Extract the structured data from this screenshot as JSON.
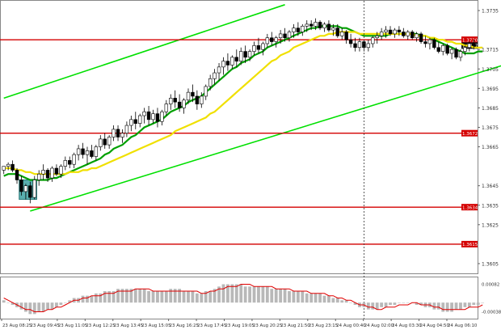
{
  "chart_data": {
    "type": "candlestick",
    "title": "",
    "xlabel": "",
    "ylabel": "",
    "price_axis": {
      "ylim": [
        1.36,
        1.374
      ],
      "ticks": [
        "1.3735",
        "1.3715",
        "1.3705",
        "1.3695",
        "1.3685",
        "1.3675",
        "1.3665",
        "1.3645",
        "1.3635",
        "1.3625",
        "1.3605"
      ]
    },
    "time_axis": {
      "ticks": [
        "23 Aug 08:25",
        "23 Aug 09:45",
        "23 Aug 11:05",
        "23 Aug 12:25",
        "23 Aug 13:45",
        "23 Aug 15:05",
        "23 Aug 16:25",
        "23 Aug 17:45",
        "23 Aug 19:05",
        "23 Aug 20:25",
        "23 Aug 21:50",
        "23 Aug 23:15",
        "24 Aug 00:40",
        "24 Aug 02:00",
        "24 Aug 03:30",
        "24 Aug 04:50",
        "24 Aug 06:10"
      ]
    },
    "horizontal_levels": [
      {
        "label": "1.3720",
        "value": 1.372,
        "color": "#d40000"
      },
      {
        "label": "1.3672",
        "value": 1.3672,
        "color": "#d40000"
      },
      {
        "label": "1.3634",
        "value": 1.3634,
        "color": "#d40000"
      },
      {
        "label": "1.3615",
        "value": 1.3615,
        "color": "#d40000"
      }
    ],
    "current_price": {
      "label": "1.3717",
      "value": 1.3717
    },
    "channel_lines": [
      {
        "from": [
          0,
          1.369
        ],
        "to": [
          64,
          1.3738
        ],
        "color": "#00e000"
      },
      {
        "from": [
          6,
          1.3632
        ],
        "to": [
          121,
          1.3712
        ],
        "color": "#00e000"
      }
    ],
    "vertical_marker": {
      "index": 82
    },
    "highlight_box": {
      "from": 4,
      "to": 7,
      "low": 1.3638,
      "high": 1.3648,
      "color": "#3ca0a0"
    },
    "candles": [
      [
        1.3653,
        1.3655,
        1.3651,
        1.3655
      ],
      [
        1.3655,
        1.3657,
        1.3653,
        1.3656
      ],
      [
        1.3656,
        1.3658,
        1.3652,
        1.3653
      ],
      [
        1.3653,
        1.3654,
        1.3646,
        1.3648
      ],
      [
        1.3648,
        1.365,
        1.364,
        1.3642
      ],
      [
        1.3642,
        1.3646,
        1.3638,
        1.3645
      ],
      [
        1.3645,
        1.3647,
        1.3636,
        1.3639
      ],
      [
        1.3639,
        1.365,
        1.3638,
        1.3648
      ],
      [
        1.3648,
        1.3653,
        1.3645,
        1.3651
      ],
      [
        1.3651,
        1.3656,
        1.3648,
        1.3653
      ],
      [
        1.3653,
        1.3654,
        1.3647,
        1.3649
      ],
      [
        1.3649,
        1.3655,
        1.3647,
        1.3654
      ],
      [
        1.3654,
        1.3656,
        1.365,
        1.3651
      ],
      [
        1.3651,
        1.3656,
        1.3649,
        1.3655
      ],
      [
        1.3655,
        1.366,
        1.3653,
        1.3658
      ],
      [
        1.3658,
        1.366,
        1.3654,
        1.3656
      ],
      [
        1.3656,
        1.3662,
        1.3654,
        1.3661
      ],
      [
        1.3661,
        1.3666,
        1.3658,
        1.3664
      ],
      [
        1.3664,
        1.3667,
        1.3659,
        1.3661
      ],
      [
        1.3661,
        1.3665,
        1.3656,
        1.3663
      ],
      [
        1.3663,
        1.3666,
        1.3659,
        1.366
      ],
      [
        1.366,
        1.3666,
        1.3658,
        1.3665
      ],
      [
        1.3665,
        1.3671,
        1.3663,
        1.3669
      ],
      [
        1.3669,
        1.3672,
        1.3664,
        1.3666
      ],
      [
        1.3666,
        1.3671,
        1.3664,
        1.367
      ],
      [
        1.367,
        1.3676,
        1.3668,
        1.3674
      ],
      [
        1.3674,
        1.3676,
        1.3668,
        1.367
      ],
      [
        1.367,
        1.3674,
        1.3667,
        1.3672
      ],
      [
        1.3672,
        1.3678,
        1.367,
        1.3676
      ],
      [
        1.3676,
        1.3681,
        1.3673,
        1.3679
      ],
      [
        1.3679,
        1.3683,
        1.3674,
        1.3677
      ],
      [
        1.3677,
        1.3682,
        1.3675,
        1.3681
      ],
      [
        1.3681,
        1.3685,
        1.3677,
        1.3683
      ],
      [
        1.3683,
        1.3686,
        1.3676,
        1.3679
      ],
      [
        1.3679,
        1.3684,
        1.3677,
        1.3682
      ],
      [
        1.3682,
        1.3685,
        1.3675,
        1.3678
      ],
      [
        1.3678,
        1.3684,
        1.3676,
        1.3683
      ],
      [
        1.3683,
        1.3689,
        1.3681,
        1.3687
      ],
      [
        1.3687,
        1.3692,
        1.3684,
        1.369
      ],
      [
        1.369,
        1.3694,
        1.3685,
        1.3688
      ],
      [
        1.3688,
        1.3692,
        1.3683,
        1.3685
      ],
      [
        1.3685,
        1.369,
        1.3682,
        1.3689
      ],
      [
        1.3689,
        1.3695,
        1.3687,
        1.3693
      ],
      [
        1.3693,
        1.3697,
        1.3688,
        1.3691
      ],
      [
        1.3691,
        1.3694,
        1.3684,
        1.3687
      ],
      [
        1.3687,
        1.3693,
        1.3685,
        1.3691
      ],
      [
        1.3691,
        1.3697,
        1.3689,
        1.3696
      ],
      [
        1.3696,
        1.3702,
        1.3694,
        1.37
      ],
      [
        1.37,
        1.3705,
        1.3697,
        1.3703
      ],
      [
        1.3703,
        1.3708,
        1.3699,
        1.3706
      ],
      [
        1.3706,
        1.3711,
        1.3702,
        1.3709
      ],
      [
        1.3709,
        1.3713,
        1.3704,
        1.3707
      ],
      [
        1.3707,
        1.3712,
        1.3705,
        1.3711
      ],
      [
        1.3711,
        1.3715,
        1.3706,
        1.3709
      ],
      [
        1.3709,
        1.3716,
        1.3707,
        1.3714
      ],
      [
        1.3714,
        1.3717,
        1.3708,
        1.3711
      ],
      [
        1.3711,
        1.3715,
        1.3709,
        1.3714
      ],
      [
        1.3714,
        1.3719,
        1.3712,
        1.3717
      ],
      [
        1.3717,
        1.3721,
        1.3713,
        1.3715
      ],
      [
        1.3715,
        1.3719,
        1.3712,
        1.3718
      ],
      [
        1.3718,
        1.3723,
        1.3716,
        1.3721
      ],
      [
        1.3721,
        1.3724,
        1.3717,
        1.3719
      ],
      [
        1.3719,
        1.3722,
        1.3716,
        1.3721
      ],
      [
        1.3721,
        1.3725,
        1.3718,
        1.3723
      ],
      [
        1.3723,
        1.3726,
        1.3719,
        1.3721
      ],
      [
        1.3721,
        1.3725,
        1.3719,
        1.3724
      ],
      [
        1.3724,
        1.3728,
        1.3721,
        1.3726
      ],
      [
        1.3726,
        1.3729,
        1.3722,
        1.3724
      ],
      [
        1.3724,
        1.3728,
        1.3722,
        1.3727
      ],
      [
        1.3727,
        1.373,
        1.3724,
        1.3728
      ],
      [
        1.3728,
        1.373,
        1.3725,
        1.3727
      ],
      [
        1.3727,
        1.3731,
        1.3725,
        1.3729
      ],
      [
        1.3729,
        1.373,
        1.3725,
        1.3726
      ],
      [
        1.3726,
        1.3729,
        1.3724,
        1.3728
      ],
      [
        1.3728,
        1.373,
        1.3724,
        1.3725
      ],
      [
        1.3725,
        1.3728,
        1.3722,
        1.3726
      ],
      [
        1.3726,
        1.3728,
        1.3721,
        1.3722
      ],
      [
        1.3722,
        1.3726,
        1.372,
        1.3724
      ],
      [
        1.3724,
        1.3725,
        1.3718,
        1.372
      ],
      [
        1.372,
        1.3723,
        1.3716,
        1.3718
      ],
      [
        1.3718,
        1.3721,
        1.3714,
        1.3716
      ],
      [
        1.3716,
        1.3721,
        1.3714,
        1.3719
      ],
      [
        1.3719,
        1.372,
        1.3714,
        1.3716
      ],
      [
        1.3716,
        1.372,
        1.3714,
        1.3718
      ],
      [
        1.3718,
        1.3722,
        1.3716,
        1.3721
      ],
      [
        1.3721,
        1.3724,
        1.3718,
        1.3722
      ],
      [
        1.3722,
        1.3726,
        1.372,
        1.3724
      ],
      [
        1.3724,
        1.3727,
        1.3721,
        1.3725
      ],
      [
        1.3725,
        1.3727,
        1.3722,
        1.3723
      ],
      [
        1.3723,
        1.3726,
        1.3721,
        1.3725
      ],
      [
        1.3725,
        1.3727,
        1.3722,
        1.3724
      ],
      [
        1.3724,
        1.3726,
        1.3721,
        1.3722
      ],
      [
        1.3722,
        1.3725,
        1.372,
        1.3724
      ],
      [
        1.3724,
        1.3725,
        1.372,
        1.3721
      ],
      [
        1.3721,
        1.3724,
        1.3719,
        1.3723
      ],
      [
        1.3723,
        1.3724,
        1.3718,
        1.3719
      ],
      [
        1.3719,
        1.3722,
        1.3716,
        1.3718
      ],
      [
        1.3718,
        1.3721,
        1.3715,
        1.372
      ],
      [
        1.372,
        1.3721,
        1.3715,
        1.3716
      ],
      [
        1.3716,
        1.3719,
        1.3713,
        1.3714
      ],
      [
        1.3714,
        1.3718,
        1.3712,
        1.3717
      ],
      [
        1.3717,
        1.3718,
        1.3712,
        1.3713
      ],
      [
        1.3713,
        1.3716,
        1.371,
        1.3715
      ],
      [
        1.3715,
        1.3716,
        1.371,
        1.3711
      ],
      [
        1.3711,
        1.3715,
        1.3709,
        1.3714
      ],
      [
        1.3714,
        1.3717,
        1.3712,
        1.3716
      ],
      [
        1.3716,
        1.3719,
        1.3714,
        1.3718
      ],
      [
        1.3718,
        1.372,
        1.3715,
        1.3717
      ]
    ],
    "moving_averages": [
      {
        "color": "#00a000",
        "values": [
          1.365,
          1.3651,
          1.3651,
          1.3651,
          1.365,
          1.3649,
          1.3648,
          1.3648,
          1.3648,
          1.3648,
          1.3648,
          1.3649,
          1.3649,
          1.365,
          1.3651,
          1.3652,
          1.3653,
          1.3654,
          1.3655,
          1.3656,
          1.3657,
          1.3658,
          1.3659,
          1.3661,
          1.3662,
          1.3664,
          1.3665,
          1.3666,
          1.3668,
          1.367,
          1.3671,
          1.3673,
          1.3675,
          1.3676,
          1.3677,
          1.3678,
          1.3679,
          1.3681,
          1.3683,
          1.3684,
          1.3685,
          1.3686,
          1.3688,
          1.3689,
          1.369,
          1.3691,
          1.3693,
          1.3695,
          1.3697,
          1.3699,
          1.3701,
          1.3703,
          1.3705,
          1.3706,
          1.3708,
          1.3709,
          1.371,
          1.3712,
          1.3713,
          1.3714,
          1.3716,
          1.3717,
          1.3718,
          1.3719,
          1.372,
          1.3721,
          1.3722,
          1.3723,
          1.3724,
          1.3725,
          1.3726,
          1.3726,
          1.3727,
          1.3727,
          1.3727,
          1.3727,
          1.3727,
          1.3726,
          1.3726,
          1.3725,
          1.3724,
          1.3723,
          1.3722,
          1.3722,
          1.3722,
          1.3722,
          1.3722,
          1.3722,
          1.3723,
          1.3723,
          1.3723,
          1.3723,
          1.3723,
          1.3723,
          1.3723,
          1.3722,
          1.3722,
          1.3721,
          1.372,
          1.3719,
          1.3718,
          1.3717,
          1.3716,
          1.3715,
          1.3714,
          1.3713,
          1.3713,
          1.3713,
          1.3714,
          1.3714
        ]
      },
      {
        "color": "#f0e000",
        "values": [
          1.3654,
          1.3654,
          1.3654,
          1.3653,
          1.3653,
          1.3652,
          1.3652,
          1.3651,
          1.3651,
          1.3651,
          1.3651,
          1.3651,
          1.3651,
          1.3651,
          1.3651,
          1.3652,
          1.3652,
          1.3652,
          1.3653,
          1.3653,
          1.3654,
          1.3654,
          1.3655,
          1.3656,
          1.3657,
          1.3658,
          1.3659,
          1.366,
          1.3661,
          1.3662,
          1.3663,
          1.3664,
          1.3665,
          1.3666,
          1.3667,
          1.3668,
          1.3669,
          1.367,
          1.3671,
          1.3673,
          1.3674,
          1.3675,
          1.3676,
          1.3677,
          1.3678,
          1.3679,
          1.368,
          1.3682,
          1.3683,
          1.3685,
          1.3687,
          1.3689,
          1.3691,
          1.3693,
          1.3695,
          1.3697,
          1.3699,
          1.3701,
          1.3703,
          1.3705,
          1.3707,
          1.3709,
          1.371,
          1.3712,
          1.3713,
          1.3714,
          1.3716,
          1.3717,
          1.3718,
          1.3719,
          1.372,
          1.3721,
          1.3722,
          1.3722,
          1.3723,
          1.3723,
          1.3724,
          1.3724,
          1.3724,
          1.3724,
          1.3724,
          1.3723,
          1.3723,
          1.3723,
          1.3723,
          1.3723,
          1.3723,
          1.3723,
          1.3723,
          1.3723,
          1.3723,
          1.3723,
          1.3723,
          1.3723,
          1.3722,
          1.3722,
          1.3722,
          1.3721,
          1.3721,
          1.372,
          1.372,
          1.3719,
          1.3719,
          1.3718,
          1.3718,
          1.3717,
          1.3717,
          1.3716,
          1.3716,
          1.3716
        ]
      }
    ],
    "macd": {
      "axis_ticks": [
        "0.00082",
        "-0.00038"
      ],
      "ylim": [
        -0.0007,
        0.0011
      ],
      "histogram": [
        0.0001,
        0.0,
        -0.0001,
        -0.0002,
        -0.0003,
        -0.0004,
        -0.0005,
        -0.0005,
        -0.0004,
        -0.0004,
        -0.0003,
        -0.0003,
        -0.0002,
        -0.0001,
        0.0,
        0.0001,
        0.0002,
        0.0002,
        0.0003,
        0.0003,
        0.0003,
        0.0004,
        0.0004,
        0.0005,
        0.0005,
        0.0005,
        0.0006,
        0.0006,
        0.0006,
        0.0006,
        0.0006,
        0.0006,
        0.0006,
        0.0005,
        0.0005,
        0.0005,
        0.0005,
        0.0005,
        0.0006,
        0.0006,
        0.0006,
        0.0005,
        0.0005,
        0.0005,
        0.0004,
        0.0004,
        0.0005,
        0.0005,
        0.0006,
        0.0007,
        0.0008,
        0.0008,
        0.0008,
        0.0008,
        0.0008,
        0.0007,
        0.0007,
        0.0007,
        0.0007,
        0.0007,
        0.0007,
        0.0006,
        0.0006,
        0.0006,
        0.0006,
        0.0005,
        0.0005,
        0.0005,
        0.0005,
        0.0004,
        0.0004,
        0.0004,
        0.0004,
        0.0003,
        0.0003,
        0.0002,
        0.0002,
        0.0001,
        0.0001,
        0.0,
        -0.0001,
        -0.0002,
        -0.0002,
        -0.0003,
        -0.0003,
        -0.0003,
        -0.0002,
        -0.0002,
        -0.0001,
        -0.0001,
        0.0,
        0.0,
        0.0,
        0.0,
        -0.0001,
        -0.0001,
        -0.0002,
        -0.0002,
        -0.0003,
        -0.0003,
        -0.0004,
        -0.0004,
        -0.0004,
        -0.0003,
        -0.0003,
        -0.0002,
        -0.0002,
        -0.0001,
        -0.0001,
        0.0
      ],
      "signal": [
        0.0002,
        0.0001,
        0.0,
        -0.0001,
        -0.0002,
        -0.0003,
        -0.0003,
        -0.0004,
        -0.0004,
        -0.0004,
        -0.0003,
        -0.0003,
        -0.0002,
        -0.0002,
        -0.0001,
        0.0,
        0.0001,
        0.0001,
        0.0002,
        0.0002,
        0.0003,
        0.0003,
        0.0003,
        0.0004,
        0.0004,
        0.0004,
        0.0005,
        0.0005,
        0.0005,
        0.0005,
        0.0006,
        0.0006,
        0.0006,
        0.0006,
        0.0005,
        0.0005,
        0.0005,
        0.0005,
        0.0005,
        0.0005,
        0.0005,
        0.0005,
        0.0005,
        0.0005,
        0.0005,
        0.0004,
        0.0004,
        0.0005,
        0.0005,
        0.0006,
        0.0006,
        0.0007,
        0.0007,
        0.0007,
        0.0008,
        0.0008,
        0.0008,
        0.0007,
        0.0007,
        0.0007,
        0.0007,
        0.0007,
        0.0006,
        0.0006,
        0.0006,
        0.0006,
        0.0005,
        0.0005,
        0.0005,
        0.0005,
        0.0004,
        0.0004,
        0.0004,
        0.0004,
        0.0003,
        0.0003,
        0.0002,
        0.0002,
        0.0001,
        0.0001,
        0.0,
        -0.0001,
        -0.0001,
        -0.0002,
        -0.0002,
        -0.0003,
        -0.0003,
        -0.0002,
        -0.0002,
        -0.0002,
        -0.0001,
        -0.0001,
        -0.0001,
        0.0,
        0.0,
        -0.0001,
        -0.0001,
        -0.0001,
        -0.0002,
        -0.0002,
        -0.0003,
        -0.0003,
        -0.0003,
        -0.0003,
        -0.0003,
        -0.0003,
        -0.0002,
        -0.0002,
        -0.0002,
        -0.0001
      ]
    }
  }
}
